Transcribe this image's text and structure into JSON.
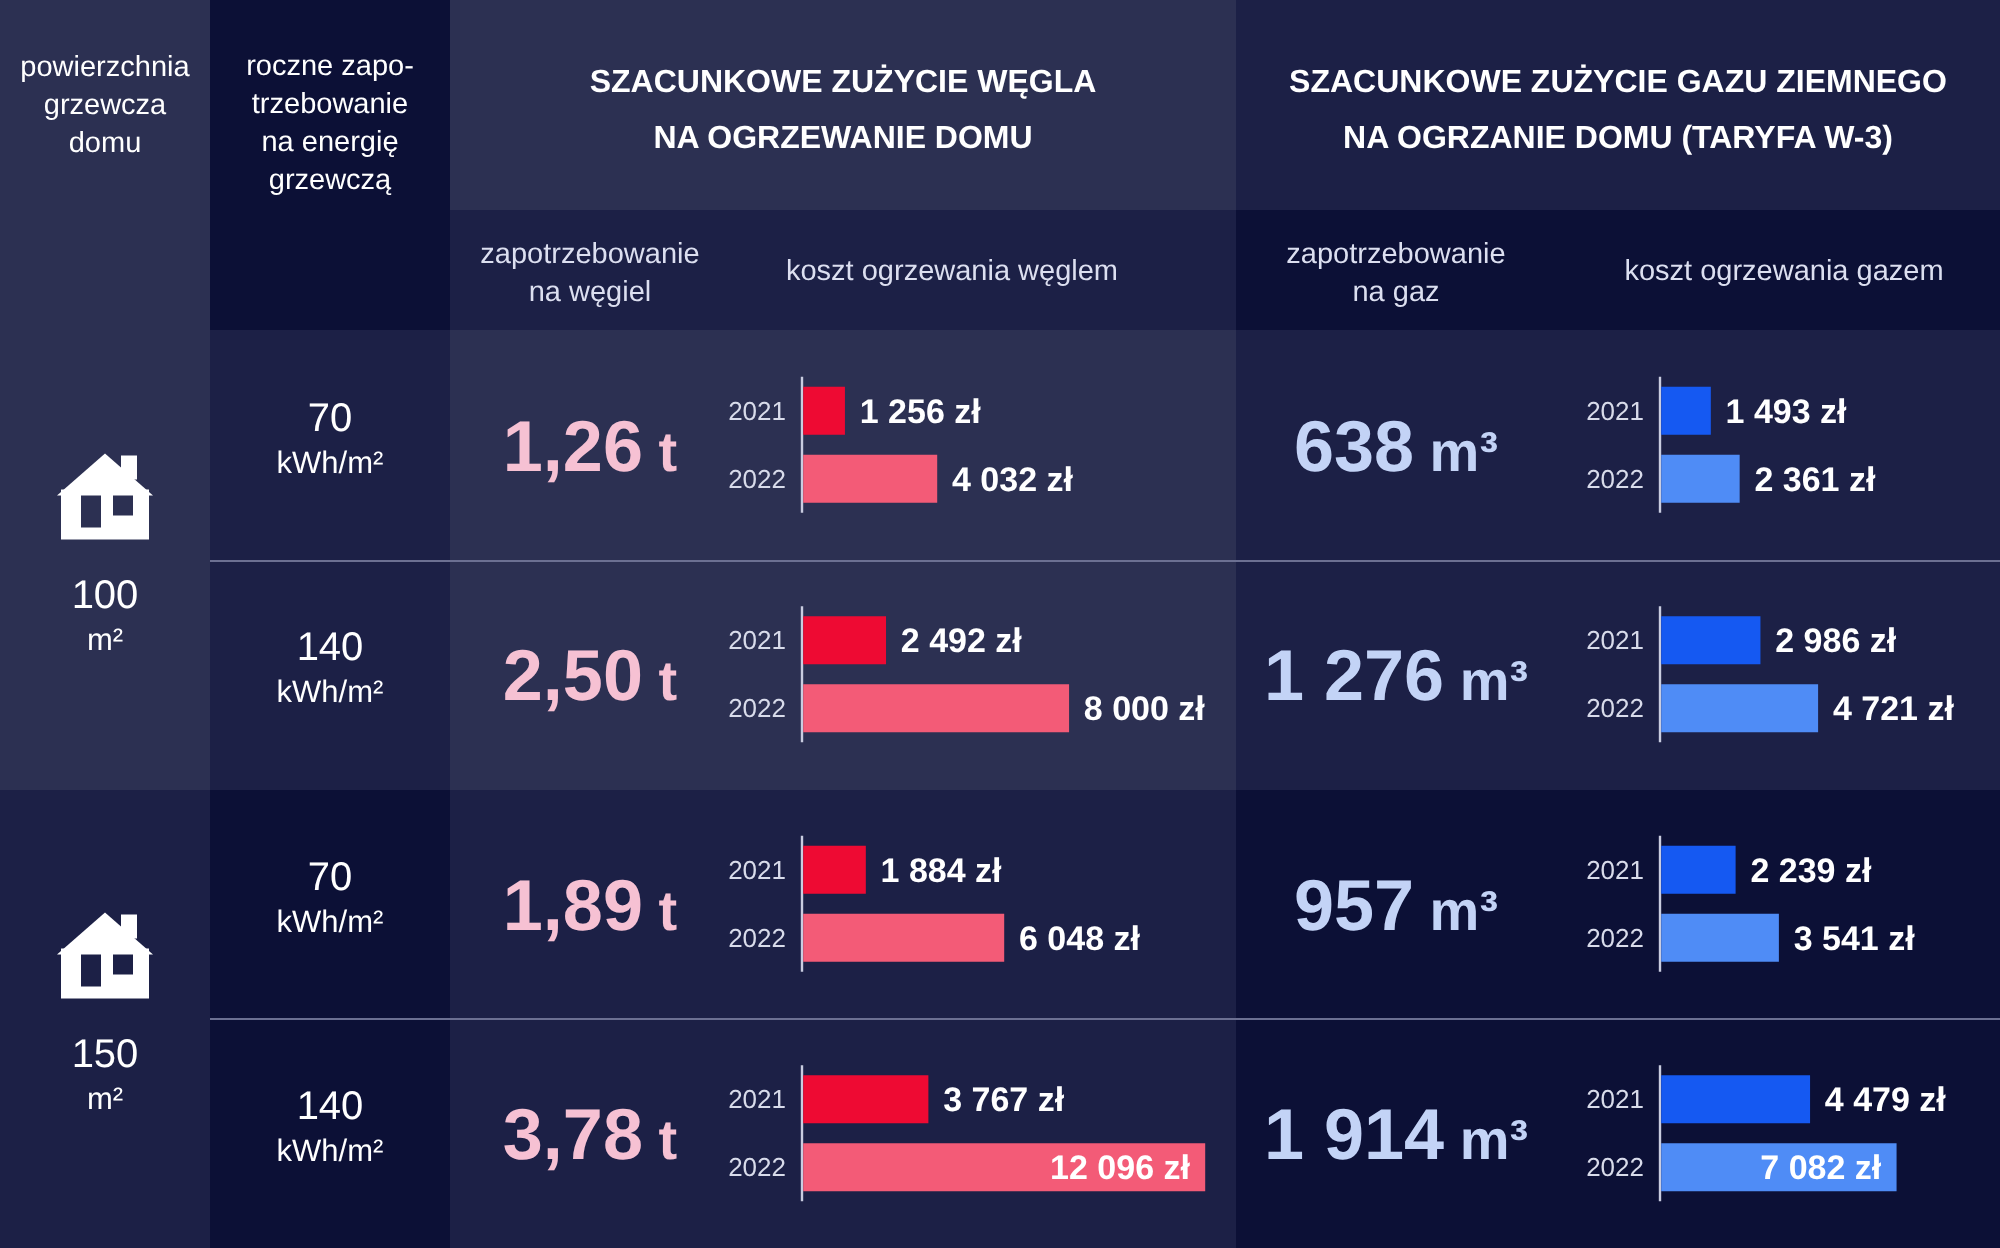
{
  "chart_data": [
    {
      "type": "other",
      "title": "powierzchnia\ngrzewcza\ndomu",
      "categories": [
        "100\nm²",
        "150\nm²"
      ]
    },
    {
      "type": "other",
      "title": "roczne zapo-\ntrzebowanie\nna energię\ngrzewczą",
      "categories": [
        "70\nkWh/m²",
        "140\nkWh/m²",
        "70\nkWh/m²",
        "140\nkWh/m²"
      ]
    },
    {
      "type": "other",
      "title": "SZACUNKOWE ZUŻYCIE WĘGLA\nNA OGRZEWANIE DOMU",
      "subtitle": "zapotrzebowanie\nna węgiel",
      "values": [
        1.26,
        2.5,
        1.89,
        3.78
      ],
      "value_labels": [
        "1,26 t",
        "2,50 t",
        "1,89 t",
        "3,78 t"
      ],
      "color": "#f6c1d3"
    },
    {
      "type": "bar",
      "orientation": "horizontal",
      "title": "koszt ogrzewania węglem",
      "categories": [
        "2021",
        "2022",
        "2021",
        "2022",
        "2021",
        "2022",
        "2021",
        "2022"
      ],
      "values": [
        1256,
        4032,
        2492,
        8000,
        1884,
        6048,
        3767,
        12096
      ],
      "colors": [
        "#ee0a33",
        "#f35b77",
        "#ee0a33",
        "#f35b77",
        "#ee0a33",
        "#f35b77",
        "#ee0a33",
        "#f35b77"
      ],
      "value_labels": [
        "1 256 zł",
        "4 032 zł",
        "2 492 zł",
        "8 000 zł",
        "1 884 zł",
        "6 048 zł",
        "3 767 zł",
        "12 096 zł"
      ]
    },
    {
      "type": "other",
      "title": "SZACUNKOWE ZUŻYCIE GAZU ZIEMNEGO\nNA OGRZANIE DOMU (TARYFA W-3)",
      "subtitle": "zapotrzebowanie\nna gaz",
      "values": [
        638,
        1276,
        957,
        1914
      ],
      "value_labels": [
        "638 m³",
        "1 276 m³",
        "957 m³",
        "1 914 m³"
      ],
      "color": "#c3d3f6"
    },
    {
      "type": "bar",
      "orientation": "horizontal",
      "title": "koszt ogrzewania gazem",
      "categories": [
        "2021",
        "2022",
        "2021",
        "2022",
        "2021",
        "2022",
        "2021",
        "2022"
      ],
      "values": [
        1493,
        2361,
        2986,
        4721,
        2239,
        3541,
        4479,
        7082
      ],
      "colors": [
        "#1559f2",
        "#4f8cf6",
        "#1559f2",
        "#4f8cf6",
        "#1559f2",
        "#4f8cf6",
        "#1559f2",
        "#4f8cf6"
      ],
      "value_labels": [
        "1 493 zł",
        "2 361 zł",
        "2 986 zł",
        "4 721 zł",
        "2 239 zł",
        "3 541 zł",
        "4 479 zł",
        "7 082 zł"
      ]
    }
  ]
}
